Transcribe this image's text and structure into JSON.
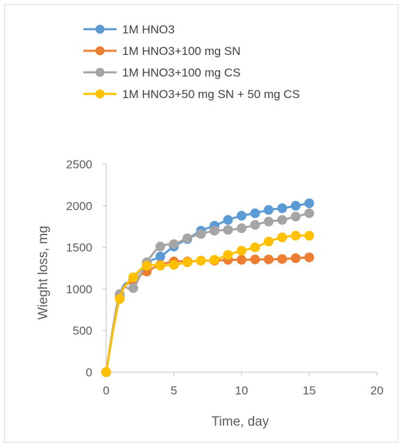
{
  "chart_data": {
    "type": "line",
    "title": "",
    "xlabel": "Time, day",
    "ylabel": "Wieght loss, mg",
    "xlim": [
      0,
      20
    ],
    "ylim": [
      0,
      2500
    ],
    "xticks": [
      0,
      5,
      10,
      15,
      20
    ],
    "yticks": [
      0,
      500,
      1000,
      1500,
      2000,
      2500
    ],
    "grid": false,
    "legend_position": "top",
    "x": [
      0,
      1,
      2,
      3,
      4,
      5,
      6,
      7,
      8,
      9,
      10,
      11,
      12,
      13,
      14,
      15
    ],
    "series": [
      {
        "name": "1M HNO3",
        "color": "#5B9BD5",
        "values": [
          0,
          930,
          1120,
          1310,
          1390,
          1510,
          1600,
          1700,
          1760,
          1830,
          1880,
          1910,
          1950,
          1970,
          2000,
          2030
        ]
      },
      {
        "name": "1M HNO3+100 mg SN",
        "color": "#ED7D31",
        "values": [
          0,
          900,
          1100,
          1210,
          1290,
          1330,
          1330,
          1340,
          1340,
          1350,
          1350,
          1355,
          1355,
          1360,
          1370,
          1380
        ]
      },
      {
        "name": "1M HNO3+100 mg CS",
        "color": "#A5A5A5",
        "values": [
          0,
          940,
          1010,
          1320,
          1510,
          1540,
          1610,
          1660,
          1700,
          1710,
          1730,
          1770,
          1810,
          1830,
          1870,
          1910
        ]
      },
      {
        "name": "1M HNO3+50 mg SN + 50 mg CS",
        "color": "#FFC000",
        "values": [
          0,
          880,
          1140,
          1280,
          1280,
          1290,
          1320,
          1340,
          1350,
          1410,
          1460,
          1500,
          1570,
          1620,
          1640,
          1640
        ]
      }
    ]
  }
}
